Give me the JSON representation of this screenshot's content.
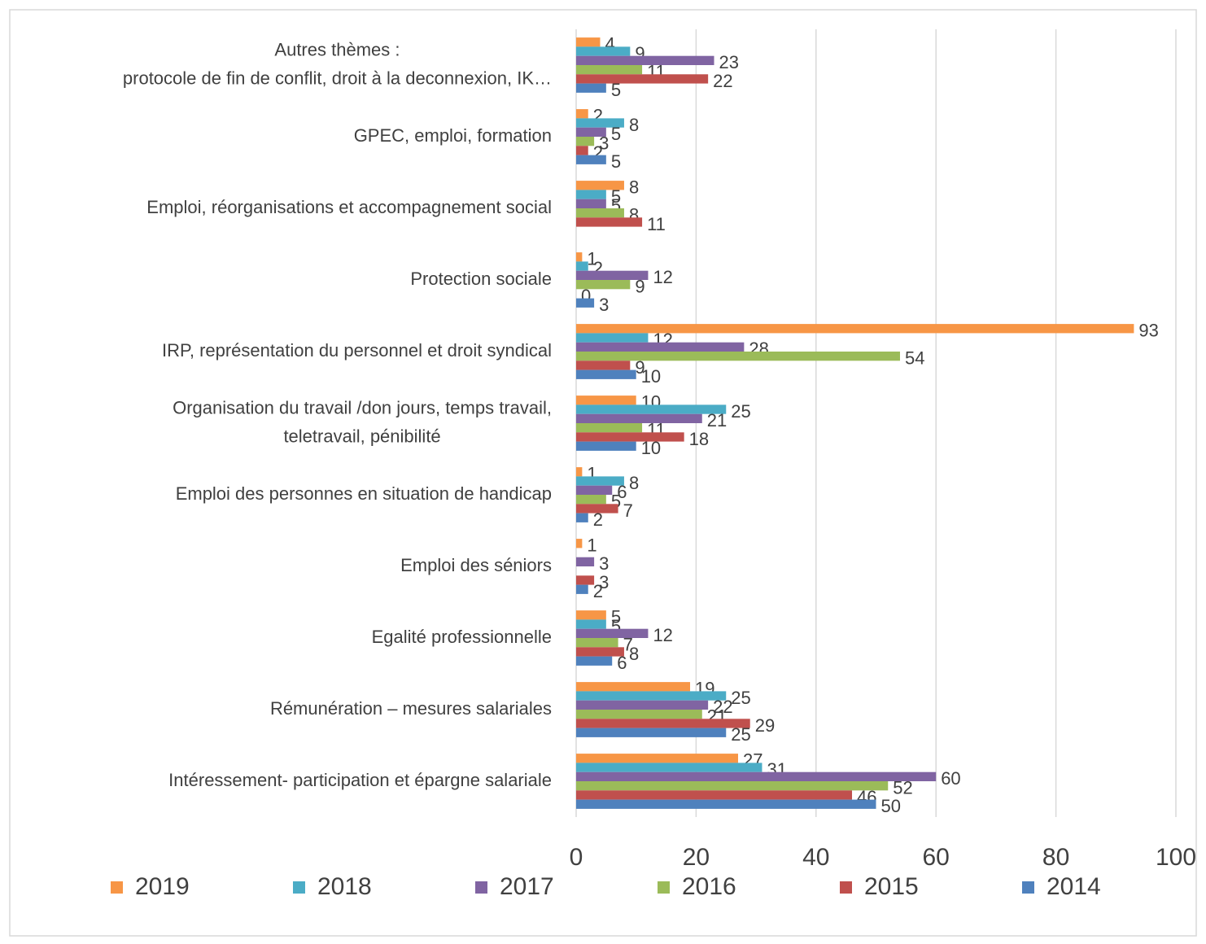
{
  "chart_data": {
    "type": "hbar",
    "categories": [
      "Autres thèmes  :\nprotocole de fin de conflit,  droit à la deconnexion, IK…",
      "GPEC, emploi,  formation",
      "Emploi, réorganisations et accompagnement social",
      "Protection sociale",
      "IRP, représentation du personnel et  droit syndical",
      "Organisation du travail /don jours, temps travail,\nteletravail, pénibilité",
      "Emploi des personnes en situation de handicap",
      "Emploi des séniors",
      "Egalité professionnelle",
      "Rémunération – mesures salariales",
      "Intéressement- participation et épargne salariale"
    ],
    "series": [
      {
        "name": "2019",
        "color": "#f79646",
        "values": [
          4,
          2,
          8,
          1,
          93,
          10,
          1,
          1,
          5,
          19,
          27
        ]
      },
      {
        "name": "2018",
        "color": "#4bacc6",
        "values": [
          9,
          8,
          5,
          2,
          12,
          25,
          8,
          null,
          5,
          25,
          31
        ]
      },
      {
        "name": "2017",
        "color": "#8064a2",
        "values": [
          23,
          5,
          5,
          12,
          28,
          21,
          6,
          3,
          12,
          22,
          60
        ]
      },
      {
        "name": "2016",
        "color": "#9bbb59",
        "values": [
          11,
          3,
          8,
          9,
          54,
          11,
          5,
          null,
          7,
          21,
          52
        ]
      },
      {
        "name": "2015",
        "color": "#c0504d",
        "values": [
          22,
          2,
          11,
          0,
          9,
          18,
          7,
          3,
          8,
          29,
          46
        ]
      },
      {
        "name": "2014",
        "color": "#4f81bd",
        "values": [
          5,
          5,
          null,
          3,
          10,
          10,
          2,
          2,
          6,
          25,
          50
        ]
      }
    ],
    "xlim": [
      0,
      100
    ],
    "xticks": [
      0,
      20,
      40,
      60,
      80,
      100
    ],
    "grid": true,
    "legend": "bottom"
  }
}
